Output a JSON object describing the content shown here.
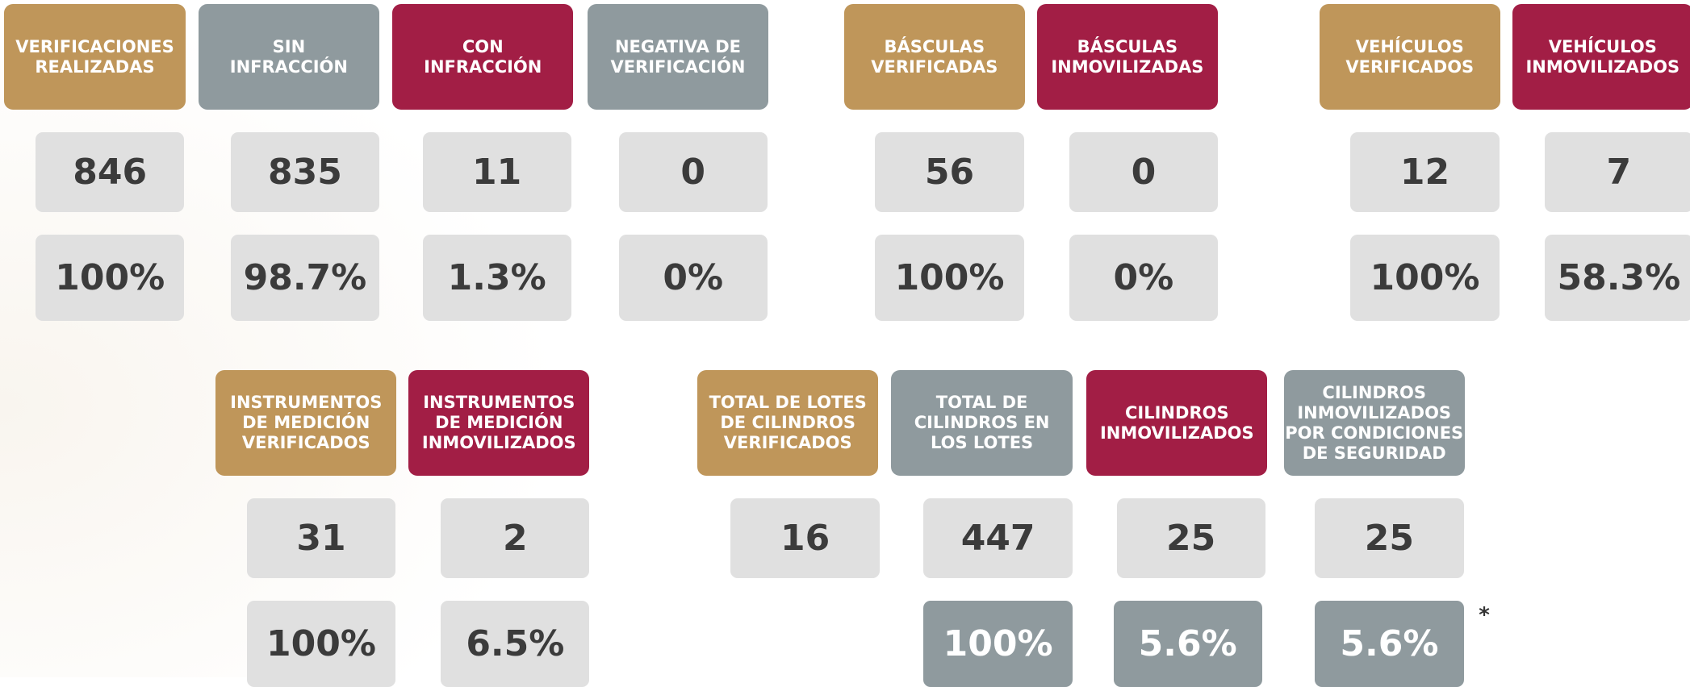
{
  "cards": [
    {
      "header": [
        "VERIFICACIONES",
        "REALIZADAS"
      ],
      "count": "846",
      "percent": "100%"
    },
    {
      "header": [
        "SIN",
        "INFRACCIÓN"
      ],
      "count": "835",
      "percent": "98.7%"
    },
    {
      "header": [
        "CON",
        "INFRACCIÓN"
      ],
      "count": "11",
      "percent": "1.3%"
    },
    {
      "header": [
        "NEGATIVA DE",
        "VERIFICACIÓN"
      ],
      "count": "0",
      "percent": "0%"
    },
    {
      "header": [
        "BÁSCULAS",
        "VERIFICADAS"
      ],
      "count": "56",
      "percent": "100%"
    },
    {
      "header": [
        "BÁSCULAS",
        "INMOVILIZADAS"
      ],
      "count": "0",
      "percent": "0%"
    },
    {
      "header": [
        "VEHÍCULOS",
        "VERIFICADOS"
      ],
      "count": "12",
      "percent": "100%"
    },
    {
      "header": [
        "VEHÍCULOS",
        "INMOVILIZADOS"
      ],
      "count": "7",
      "percent": "58.3%"
    },
    {
      "header": [
        "INSTRUMENTOS",
        "DE MEDICIÓN",
        "VERIFICADOS"
      ],
      "count": "31",
      "percent": "100%"
    },
    {
      "header": [
        "INSTRUMENTOS",
        "DE MEDICIÓN",
        "INMOVILIZADOS"
      ],
      "count": "2",
      "percent": "6.5%"
    },
    {
      "header": [
        "TOTAL DE LOTES",
        "DE CILINDROS",
        "VERIFICADOS"
      ],
      "count": "16"
    },
    {
      "header": [
        "TOTAL DE",
        "CILINDROS EN",
        "LOS LOTES"
      ],
      "count": "447",
      "percent": "100%"
    },
    {
      "header": [
        "CILINDROS",
        "INMOVILIZADOS"
      ],
      "count": "25",
      "percent": "5.6%"
    },
    {
      "header": [
        "CILINDROS",
        "INMOVILIZADOS",
        "POR CONDICIONES",
        "DE SEGURIDAD"
      ],
      "count": "25",
      "percent": "5.6%"
    }
  ],
  "footnote": "*"
}
